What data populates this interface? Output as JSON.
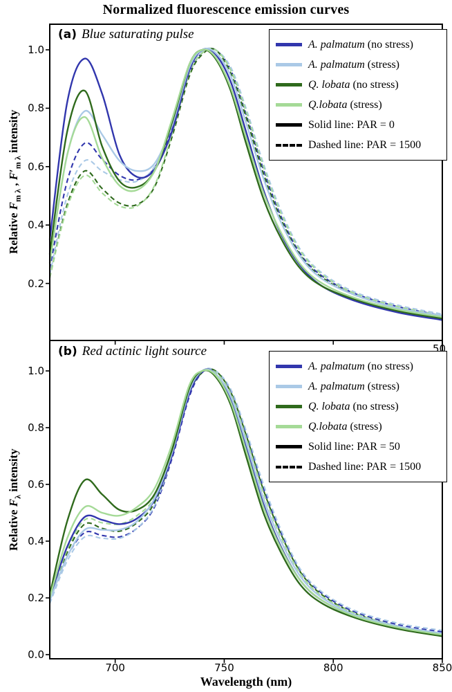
{
  "figure": {
    "title": "Normalized  fluorescence emission curves",
    "xlabel": "Wavelength (nm)",
    "x_ticks": [
      "700",
      "750",
      "800",
      "850"
    ],
    "partial_tick": "50"
  },
  "panel_a": {
    "tag": "(a)",
    "subtitle": "Blue saturating pulse",
    "ylabel": {
      "prefix": "Relative ",
      "f1": "F",
      "sub1": "m λ",
      "sep": " , ",
      "f2": "F",
      "prime": "′",
      "sub2": "m λ",
      "suffix": " intensity"
    },
    "y_ticks": [
      "1.0",
      "0.8",
      "0.6",
      "0.4",
      "0.2"
    ],
    "legend": [
      {
        "species": "A. palmatum",
        "note": "  (no stress)",
        "color": "#3136ad",
        "dash": false
      },
      {
        "species": "A. palmatum",
        "note": "  (stress)",
        "color": "#aac9e6",
        "dash": false
      },
      {
        "species": "Q. lobata",
        "note": "  (no stress)",
        "color": "#2f6a1c",
        "dash": false
      },
      {
        "species": "Q.lobata",
        "note": "  (stress)",
        "color": "#a5da97",
        "dash": false
      },
      {
        "species": "",
        "note": "Solid line: PAR = 0",
        "color": "#000000",
        "dash": false
      },
      {
        "species": "",
        "note": "Dashed line: PAR = 1500",
        "color": "#000000",
        "dash": true
      }
    ]
  },
  "panel_b": {
    "tag": "(b)",
    "subtitle": "Red actinic light source",
    "ylabel": {
      "prefix": "Relative ",
      "f1": "F",
      "sub1": "λ",
      "suffix": " intensity"
    },
    "y_ticks": [
      "1.0",
      "0.8",
      "0.6",
      "0.4",
      "0.2",
      "0.0"
    ],
    "legend": [
      {
        "species": "A. palmatum",
        "note": "  (no stress)",
        "color": "#3136ad",
        "dash": false
      },
      {
        "species": "A. palmatum",
        "note": "  (stress)",
        "color": "#aac9e6",
        "dash": false
      },
      {
        "species": "Q. lobata",
        "note": "  (no stress)",
        "color": "#2f6a1c",
        "dash": false
      },
      {
        "species": "Q.lobata",
        "note": "  (stress)",
        "color": "#a5da97",
        "dash": false
      },
      {
        "species": "",
        "note": "Solid line: PAR = 50",
        "color": "#000000",
        "dash": false
      },
      {
        "species": "",
        "note": "Dashed line: PAR = 1500",
        "color": "#000000",
        "dash": true
      }
    ]
  },
  "chart_data": [
    {
      "type": "line",
      "panel": "a",
      "title": "(a) Blue saturating pulse",
      "xlabel": "Wavelength (nm)",
      "ylabel": "Relative Fm λ, F′m λ intensity",
      "xlim": [
        670,
        850
      ],
      "ylim": [
        0,
        1.08
      ],
      "x_ticks": [
        700,
        750,
        800,
        850
      ],
      "y_ticks": [
        0.2,
        0.4,
        0.6,
        0.8,
        1.0
      ],
      "grid": false,
      "legend_position": "upper right",
      "x": [
        670,
        678,
        686,
        694,
        702,
        710,
        718,
        726,
        734,
        740,
        746,
        753,
        760,
        768,
        776,
        785,
        795,
        810,
        830,
        850
      ],
      "series": [
        {
          "name": "A. palmatum (no stress), PAR = 0",
          "color": "#3136ad",
          "style": "solid",
          "values": [
            0.35,
            0.82,
            0.97,
            0.85,
            0.64,
            0.565,
            0.59,
            0.72,
            0.93,
            1.0,
            0.985,
            0.89,
            0.72,
            0.52,
            0.37,
            0.26,
            0.19,
            0.14,
            0.1,
            0.075
          ]
        },
        {
          "name": "A. palmatum (stress), PAR = 0",
          "color": "#aac9e6",
          "style": "solid",
          "values": [
            0.28,
            0.64,
            0.79,
            0.71,
            0.62,
            0.585,
            0.61,
            0.74,
            0.94,
            1.0,
            0.99,
            0.91,
            0.75,
            0.56,
            0.41,
            0.29,
            0.215,
            0.16,
            0.115,
            0.09
          ]
        },
        {
          "name": "Q. lobata (no stress), PAR = 0",
          "color": "#2f6a1c",
          "style": "solid",
          "values": [
            0.3,
            0.72,
            0.86,
            0.67,
            0.55,
            0.53,
            0.585,
            0.75,
            0.95,
            1.0,
            0.97,
            0.86,
            0.68,
            0.49,
            0.355,
            0.25,
            0.19,
            0.145,
            0.105,
            0.08
          ]
        },
        {
          "name": "Q. lobata (stress), PAR = 0",
          "color": "#a5da97",
          "style": "solid",
          "values": [
            0.27,
            0.64,
            0.77,
            0.63,
            0.535,
            0.52,
            0.585,
            0.76,
            0.95,
            1.0,
            0.975,
            0.87,
            0.7,
            0.51,
            0.375,
            0.265,
            0.2,
            0.15,
            0.11,
            0.085
          ]
        },
        {
          "name": "A. palmatum (no stress), PAR = 1500",
          "color": "#3136ad",
          "style": "dashed",
          "values": [
            0.25,
            0.55,
            0.68,
            0.625,
            0.57,
            0.555,
            0.595,
            0.73,
            0.92,
            0.99,
            1.0,
            0.93,
            0.78,
            0.59,
            0.43,
            0.3,
            0.225,
            0.165,
            0.12,
            0.09
          ]
        },
        {
          "name": "A. palmatum (stress), PAR = 1500",
          "color": "#aac9e6",
          "style": "dashed",
          "values": [
            0.23,
            0.5,
            0.62,
            0.585,
            0.555,
            0.55,
            0.6,
            0.745,
            0.93,
            0.995,
            1.0,
            0.94,
            0.8,
            0.61,
            0.45,
            0.315,
            0.235,
            0.17,
            0.125,
            0.095
          ]
        },
        {
          "name": "Q. lobata (no stress), PAR = 1500",
          "color": "#2f6a1c",
          "style": "dashed",
          "values": [
            0.22,
            0.47,
            0.585,
            0.525,
            0.475,
            0.47,
            0.53,
            0.7,
            0.91,
            0.985,
            1.0,
            0.92,
            0.77,
            0.575,
            0.42,
            0.295,
            0.22,
            0.16,
            0.115,
            0.09
          ]
        },
        {
          "name": "Q. lobata (stress), PAR = 1500",
          "color": "#a5da97",
          "style": "dashed",
          "values": [
            0.22,
            0.46,
            0.57,
            0.51,
            0.465,
            0.465,
            0.535,
            0.71,
            0.92,
            0.99,
            1.0,
            0.93,
            0.79,
            0.6,
            0.44,
            0.31,
            0.23,
            0.165,
            0.12,
            0.09
          ]
        }
      ]
    },
    {
      "type": "line",
      "panel": "b",
      "title": "(b) Red actinic light source",
      "xlabel": "Wavelength (nm)",
      "ylabel": "Relative Fλ intensity",
      "xlim": [
        670,
        850
      ],
      "ylim": [
        0,
        1.1
      ],
      "x_ticks": [
        700,
        750,
        800,
        850
      ],
      "y_ticks": [
        0.0,
        0.2,
        0.4,
        0.6,
        0.8,
        1.0
      ],
      "grid": false,
      "legend_position": "upper right",
      "x": [
        670,
        678,
        686,
        694,
        702,
        710,
        718,
        726,
        734,
        740,
        746,
        753,
        760,
        768,
        776,
        785,
        795,
        810,
        830,
        850
      ],
      "series": [
        {
          "name": "A. palmatum (no stress), PAR = 50",
          "color": "#3136ad",
          "style": "solid",
          "values": [
            0.2,
            0.38,
            0.485,
            0.475,
            0.46,
            0.48,
            0.545,
            0.7,
            0.92,
            1.0,
            0.99,
            0.9,
            0.73,
            0.53,
            0.38,
            0.26,
            0.19,
            0.135,
            0.095,
            0.07
          ]
        },
        {
          "name": "A. palmatum (stress), PAR = 50",
          "color": "#aac9e6",
          "style": "solid",
          "values": [
            0.19,
            0.345,
            0.44,
            0.44,
            0.44,
            0.47,
            0.55,
            0.71,
            0.93,
            1.0,
            0.99,
            0.91,
            0.75,
            0.55,
            0.4,
            0.275,
            0.2,
            0.14,
            0.1,
            0.075
          ]
        },
        {
          "name": "Q. lobata (no stress), PAR = 50",
          "color": "#2f6a1c",
          "style": "solid",
          "values": [
            0.21,
            0.47,
            0.615,
            0.565,
            0.51,
            0.51,
            0.565,
            0.72,
            0.94,
            1.0,
            0.98,
            0.88,
            0.7,
            0.5,
            0.36,
            0.245,
            0.18,
            0.13,
            0.09,
            0.065
          ]
        },
        {
          "name": "Q. lobata (stress), PAR = 50",
          "color": "#a5da97",
          "style": "solid",
          "values": [
            0.2,
            0.41,
            0.52,
            0.5,
            0.49,
            0.52,
            0.585,
            0.74,
            0.95,
            1.0,
            0.985,
            0.89,
            0.72,
            0.52,
            0.375,
            0.26,
            0.19,
            0.135,
            0.095,
            0.07
          ]
        },
        {
          "name": "A. palmatum (no stress), PAR = 1500",
          "color": "#3136ad",
          "style": "dashed",
          "values": [
            0.19,
            0.345,
            0.43,
            0.42,
            0.415,
            0.445,
            0.52,
            0.69,
            0.91,
            0.995,
            1.0,
            0.93,
            0.78,
            0.585,
            0.43,
            0.295,
            0.215,
            0.15,
            0.105,
            0.08
          ]
        },
        {
          "name": "A. palmatum (stress), PAR = 1500",
          "color": "#aac9e6",
          "style": "dashed",
          "values": [
            0.18,
            0.33,
            0.415,
            0.41,
            0.41,
            0.445,
            0.525,
            0.7,
            0.92,
            1.0,
            1.0,
            0.935,
            0.79,
            0.6,
            0.44,
            0.3,
            0.22,
            0.155,
            0.11,
            0.085
          ]
        },
        {
          "name": "Q. lobata (no stress), PAR = 1500",
          "color": "#2f6a1c",
          "style": "dashed",
          "values": [
            0.19,
            0.36,
            0.46,
            0.445,
            0.435,
            0.465,
            0.535,
            0.7,
            0.92,
            0.995,
            1.0,
            0.925,
            0.775,
            0.58,
            0.425,
            0.29,
            0.21,
            0.145,
            0.1,
            0.075
          ]
        },
        {
          "name": "Q. lobata (stress), PAR = 1500",
          "color": "#a5da97",
          "style": "dashed",
          "values": [
            0.19,
            0.37,
            0.475,
            0.465,
            0.46,
            0.49,
            0.555,
            0.72,
            0.93,
            1.0,
            0.995,
            0.92,
            0.765,
            0.57,
            0.415,
            0.285,
            0.205,
            0.145,
            0.1,
            0.075
          ]
        }
      ]
    }
  ]
}
